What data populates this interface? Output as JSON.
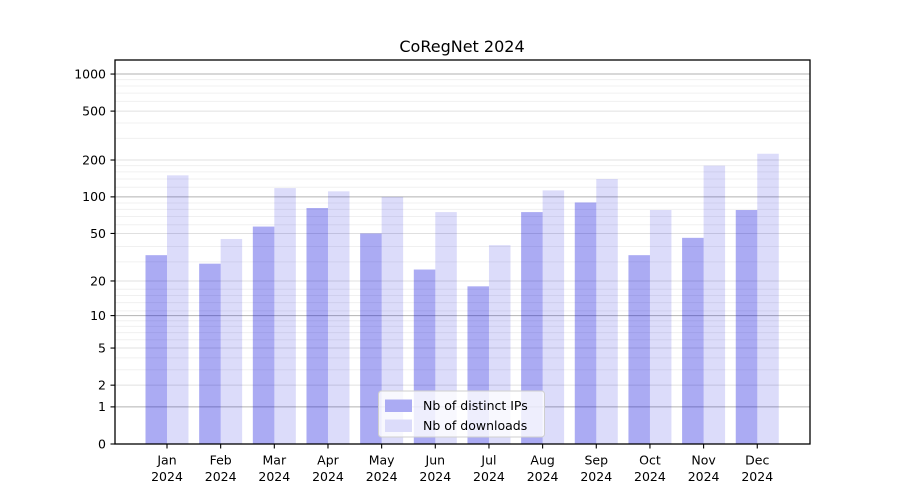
{
  "title": "CoRegNet 2024",
  "legend": {
    "position": "lower center",
    "items": [
      {
        "label": "Nb of distinct IPs"
      },
      {
        "label": "Nb of downloads"
      }
    ]
  },
  "chart_data": {
    "type": "bar",
    "title": "CoRegNet 2024",
    "xlabel": "",
    "ylabel": "",
    "grid": true,
    "legend_position": "lower center",
    "categories": [
      "Jan 2024",
      "Feb 2024",
      "Mar 2024",
      "Apr 2024",
      "May 2024",
      "Jun 2024",
      "Jul 2024",
      "Aug 2024",
      "Sep 2024",
      "Oct 2024",
      "Nov 2024",
      "Dec 2024"
    ],
    "series": [
      {
        "key": "distinct-ips",
        "name": "Nb of distinct IPs",
        "color": "#ababf3",
        "bar_base_color": "#0a0adc",
        "bar_opacity": 0.34,
        "values": [
          33,
          28,
          57,
          81,
          50,
          25,
          18,
          75,
          90,
          33,
          46,
          78
        ]
      },
      {
        "key": "downloads",
        "name": "Nb of downloads",
        "color": "#dcdcfa",
        "bar_base_color": "#0a0adc",
        "bar_opacity": 0.14,
        "values": [
          150,
          45,
          118,
          111,
          100,
          75,
          40,
          113,
          140,
          78,
          180,
          225
        ]
      }
    ],
    "y_axis": {
      "scale": "log10(1+x)",
      "ylim": [
        0,
        1300
      ],
      "ticks": [
        0,
        1,
        2,
        5,
        10,
        20,
        50,
        100,
        200,
        500,
        1000
      ],
      "gridlines_major": [
        1,
        10,
        100,
        1000
      ],
      "gridlines_light": [
        2,
        5,
        20,
        50,
        200,
        500
      ],
      "gridlines_faint": [
        3,
        4,
        6,
        7,
        8,
        9,
        11,
        13,
        15,
        17,
        29,
        39,
        59,
        69,
        79,
        89,
        120,
        140,
        160,
        180,
        300,
        400,
        600,
        700,
        800,
        900
      ],
      "gridline_major_color": "#b2b2b2",
      "gridline_light_color": "#e0e0e0",
      "gridline_faint_color": "#f0f0f0"
    }
  }
}
